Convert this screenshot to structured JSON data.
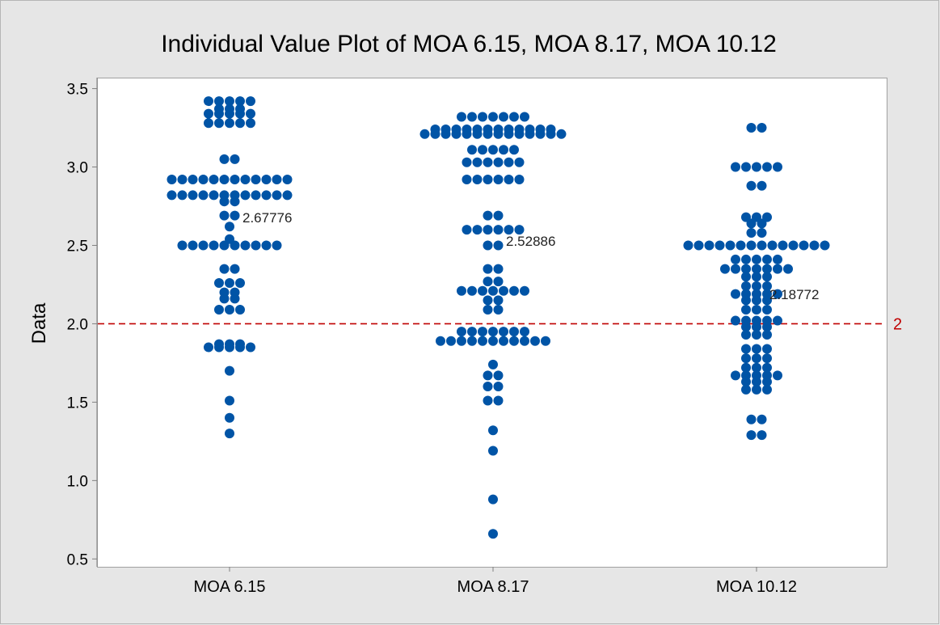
{
  "chart_data": {
    "type": "scatter",
    "subtype": "individual-value-plot",
    "title": "Individual Value Plot of MOA 6.15, MOA 8.17, MOA 10.12",
    "xlabel": "",
    "ylabel": "Data",
    "ylim": [
      0.45,
      3.57
    ],
    "yticks": [
      "0.5",
      "1.0",
      "1.5",
      "2.0",
      "2.5",
      "3.0",
      "3.5"
    ],
    "categories": [
      "MOA 6.15",
      "MOA 8.17",
      "MOA 10.12"
    ],
    "series": [
      {
        "name": "MOA 6.15",
        "mean_label": "2.67776",
        "mean": 2.67776,
        "groups": [
          [
            3.42,
            5
          ],
          [
            3.37,
            3
          ],
          [
            3.34,
            5
          ],
          [
            3.28,
            5
          ],
          [
            3.05,
            2
          ],
          [
            2.92,
            12
          ],
          [
            2.82,
            12
          ],
          [
            2.78,
            2
          ],
          [
            2.69,
            2
          ],
          [
            2.62,
            1
          ],
          [
            2.54,
            1
          ],
          [
            2.5,
            10
          ],
          [
            2.35,
            2
          ],
          [
            2.26,
            3
          ],
          [
            2.2,
            2
          ],
          [
            2.16,
            2
          ],
          [
            2.09,
            3
          ],
          [
            1.87,
            3
          ],
          [
            1.85,
            5
          ],
          [
            1.7,
            1
          ],
          [
            1.51,
            1
          ],
          [
            1.4,
            1
          ],
          [
            1.3,
            1
          ]
        ]
      },
      {
        "name": "MOA 8.17",
        "mean_label": "2.52886",
        "mean": 2.52886,
        "groups": [
          [
            3.32,
            7
          ],
          [
            3.24,
            12
          ],
          [
            3.21,
            14
          ],
          [
            3.11,
            5
          ],
          [
            3.03,
            6
          ],
          [
            2.92,
            6
          ],
          [
            2.69,
            2
          ],
          [
            2.6,
            6
          ],
          [
            2.5,
            2
          ],
          [
            2.35,
            2
          ],
          [
            2.27,
            2
          ],
          [
            2.21,
            7
          ],
          [
            2.15,
            2
          ],
          [
            2.09,
            2
          ],
          [
            1.95,
            7
          ],
          [
            1.89,
            11
          ],
          [
            1.74,
            1
          ],
          [
            1.67,
            2
          ],
          [
            1.6,
            2
          ],
          [
            1.51,
            2
          ],
          [
            1.32,
            1
          ],
          [
            1.19,
            1
          ],
          [
            0.88,
            1
          ],
          [
            0.66,
            1
          ]
        ]
      },
      {
        "name": "MOA 10.12",
        "mean_label": "2.18772",
        "mean": 2.18772,
        "groups": [
          [
            3.25,
            2
          ],
          [
            3.0,
            5
          ],
          [
            2.88,
            2
          ],
          [
            2.68,
            3
          ],
          [
            2.64,
            2
          ],
          [
            2.58,
            2
          ],
          [
            2.5,
            14
          ],
          [
            2.41,
            5
          ],
          [
            2.35,
            7
          ],
          [
            2.3,
            3
          ],
          [
            2.24,
            3
          ],
          [
            2.19,
            5
          ],
          [
            2.15,
            3
          ],
          [
            2.09,
            3
          ],
          [
            2.02,
            5
          ],
          [
            1.98,
            3
          ],
          [
            1.93,
            3
          ],
          [
            1.84,
            3
          ],
          [
            1.78,
            3
          ],
          [
            1.72,
            3
          ],
          [
            1.67,
            5
          ],
          [
            1.63,
            3
          ],
          [
            1.58,
            3
          ],
          [
            1.39,
            2
          ],
          [
            1.29,
            2
          ]
        ]
      }
    ],
    "reference_line": {
      "value": 2,
      "label": "2",
      "style": "dashed",
      "color": "#c00000"
    },
    "marker_color": "#0054a6"
  }
}
